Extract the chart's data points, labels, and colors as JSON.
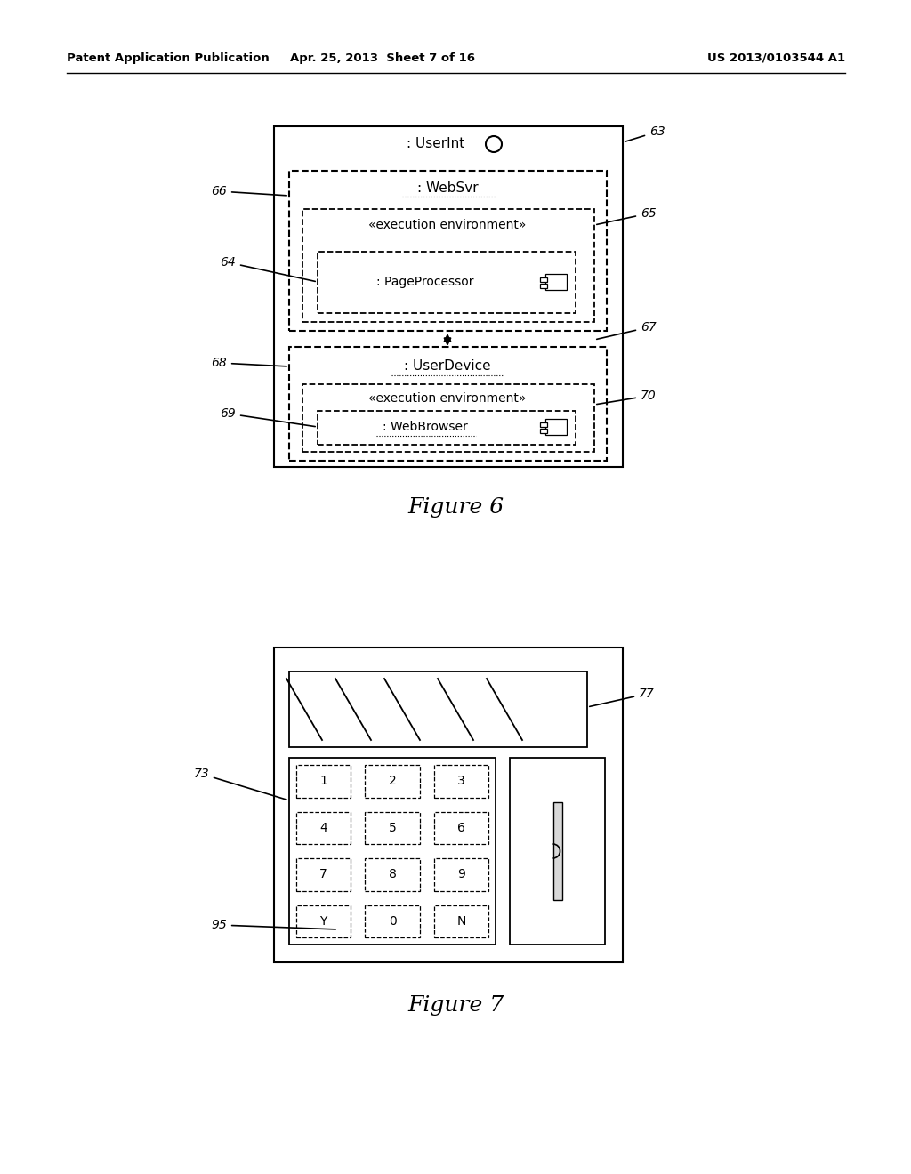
{
  "header_left": "Patent Application Publication",
  "header_mid": "Apr. 25, 2013  Sheet 7 of 16",
  "header_right": "US 2013/0103544 A1",
  "fig6_caption": "Figure 6",
  "fig7_caption": "Figure 7",
  "bg_color": "#ffffff"
}
